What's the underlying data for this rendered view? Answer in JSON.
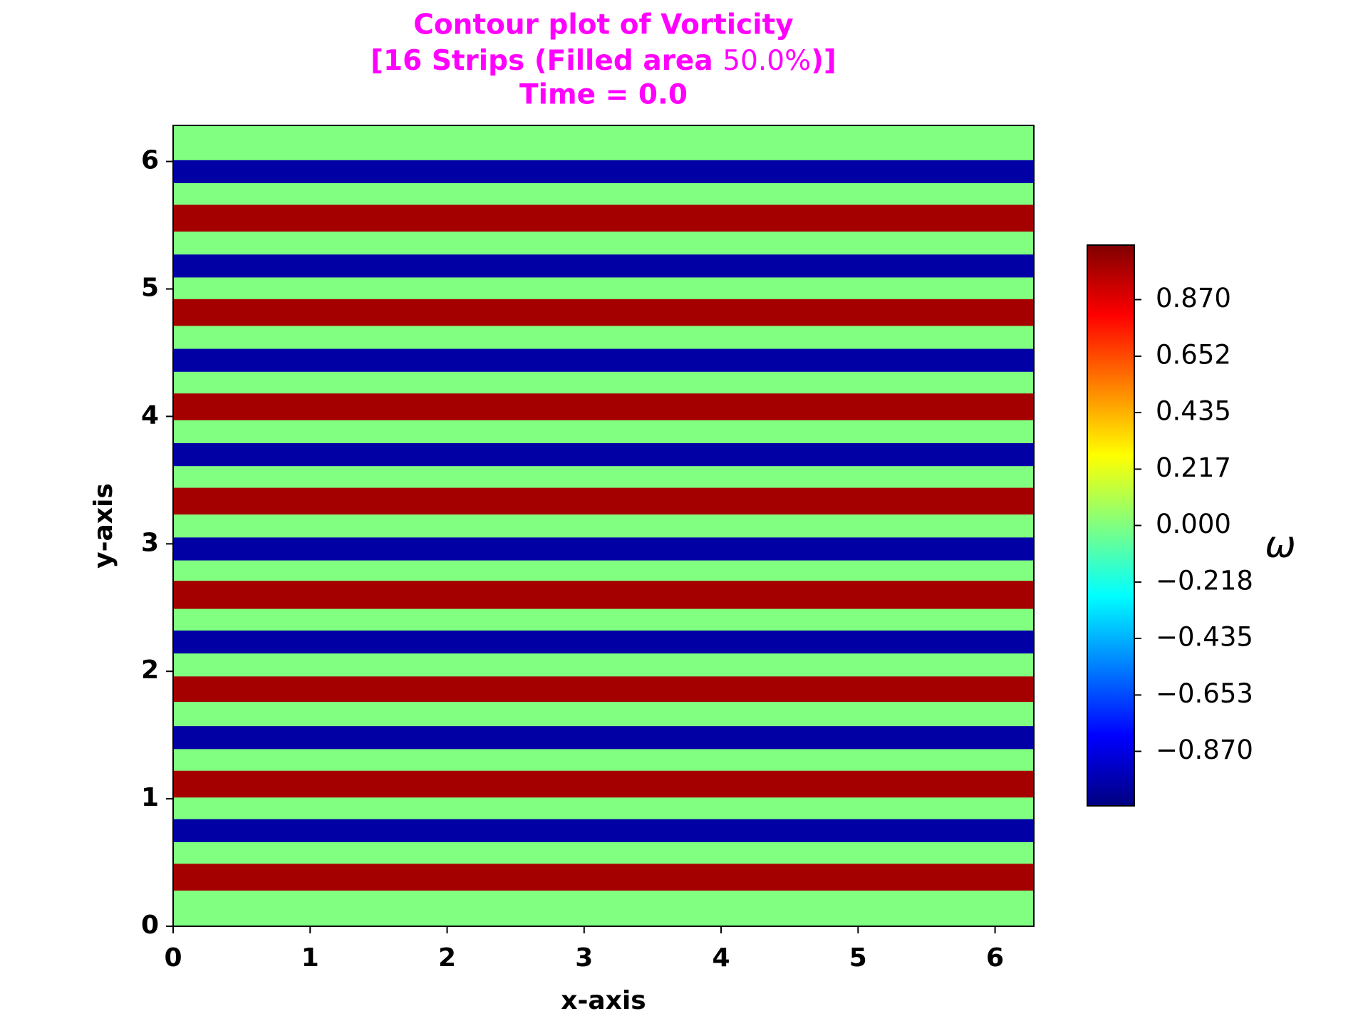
{
  "chart_data": {
    "type": "contour",
    "title": [
      "Contour plot of Vorticity",
      [
        "[16 Strips (Filled area ",
        "50.0%",
        ")]"
      ],
      "Time = 0.0"
    ],
    "x_label": "x-axis",
    "y_label": "y-axis",
    "xlim": [
      0,
      6.283
    ],
    "ylim": [
      0,
      6.283
    ],
    "xticks": [
      0,
      1,
      2,
      3,
      4,
      5,
      6
    ],
    "yticks": [
      0,
      1,
      2,
      3,
      4,
      5,
      6
    ],
    "colormap": "jet",
    "background_value": 0,
    "strips": [
      {
        "y": [
          0.28,
          0.49
        ],
        "value": 1
      },
      {
        "y": [
          0.66,
          0.84
        ],
        "value": -1
      },
      {
        "y": [
          1.01,
          1.22
        ],
        "value": 1
      },
      {
        "y": [
          1.39,
          1.57
        ],
        "value": -1
      },
      {
        "y": [
          1.76,
          1.96
        ],
        "value": 1
      },
      {
        "y": [
          2.14,
          2.32
        ],
        "value": -1
      },
      {
        "y": [
          2.49,
          2.71
        ],
        "value": 1
      },
      {
        "y": [
          2.87,
          3.05
        ],
        "value": -1
      },
      {
        "y": [
          3.23,
          3.44
        ],
        "value": 1
      },
      {
        "y": [
          3.61,
          3.79
        ],
        "value": -1
      },
      {
        "y": [
          3.97,
          4.18
        ],
        "value": 1
      },
      {
        "y": [
          4.35,
          4.53
        ],
        "value": -1
      },
      {
        "y": [
          4.71,
          4.92
        ],
        "value": 1
      },
      {
        "y": [
          5.09,
          5.27
        ],
        "value": -1
      },
      {
        "y": [
          5.45,
          5.66
        ],
        "value": 1
      },
      {
        "y": [
          5.83,
          6.01
        ],
        "value": -1
      }
    ],
    "colorbar": {
      "label": "ω",
      "lim": [
        -1.08,
        1.08
      ],
      "ticks": [
        {
          "value": 0.87,
          "label": "0.870"
        },
        {
          "value": 0.652,
          "label": "0.652"
        },
        {
          "value": 0.435,
          "label": "0.435"
        },
        {
          "value": 0.217,
          "label": "0.217"
        },
        {
          "value": 0,
          "label": "0.000"
        },
        {
          "value": -0.218,
          "label": "−0.218"
        },
        {
          "value": -0.435,
          "label": "−0.435"
        },
        {
          "value": -0.653,
          "label": "−0.653"
        },
        {
          "value": -0.87,
          "label": "−0.870"
        }
      ]
    }
  }
}
